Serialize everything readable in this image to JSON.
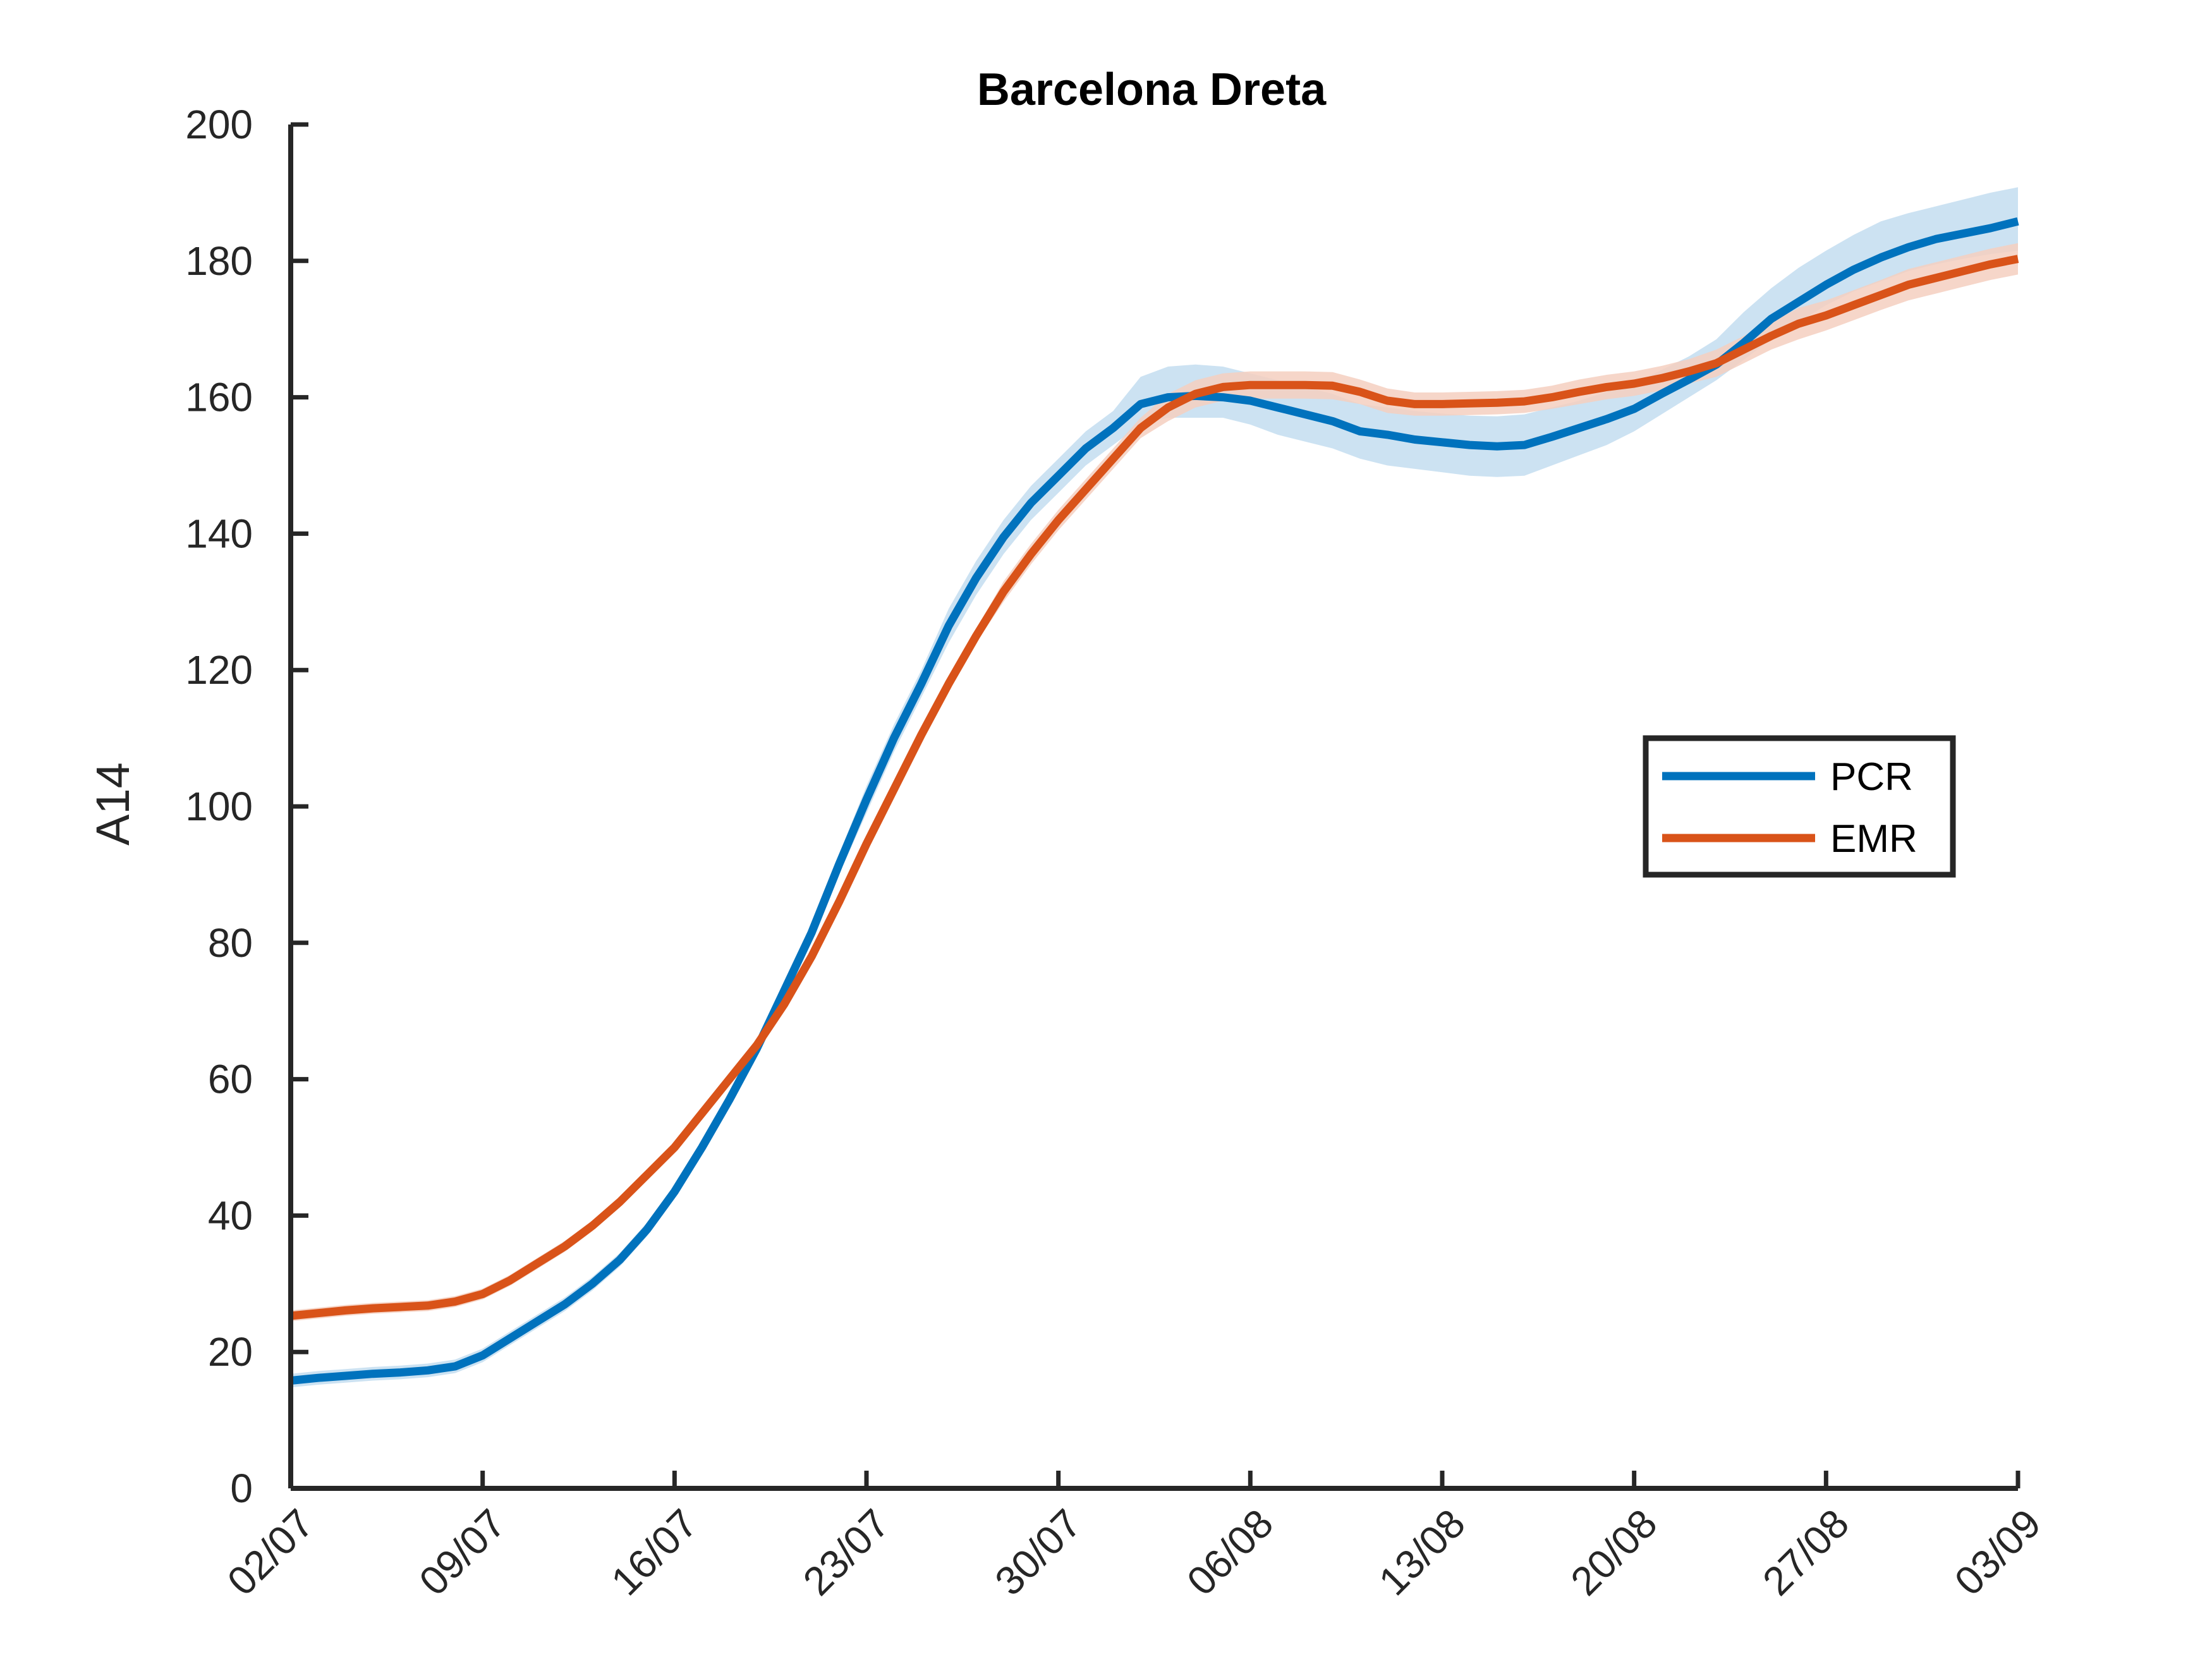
{
  "chart_data": {
    "type": "line",
    "title": "Barcelona Dreta",
    "xlabel": "",
    "ylabel": "A14",
    "ylim": [
      0,
      200
    ],
    "yticks": [
      "0",
      "20",
      "40",
      "60",
      "80",
      "100",
      "120",
      "140",
      "160",
      "180",
      "200"
    ],
    "xticks": [
      "02/07",
      "09/07",
      "16/07",
      "23/07",
      "30/07",
      "06/08",
      "13/08",
      "20/08",
      "27/08",
      "03/09"
    ],
    "x_start": "2020-07-02",
    "x_end": "2020-09-03",
    "grid": false,
    "legend_position": "right",
    "series": [
      {
        "name": "PCR",
        "color": "#0072BD",
        "band_color": "#C3DDF0",
        "x": [
          "2020-07-02",
          "2020-07-03",
          "2020-07-04",
          "2020-07-05",
          "2020-07-06",
          "2020-07-07",
          "2020-07-08",
          "2020-07-09",
          "2020-07-10",
          "2020-07-11",
          "2020-07-12",
          "2020-07-13",
          "2020-07-14",
          "2020-07-15",
          "2020-07-16",
          "2020-07-17",
          "2020-07-18",
          "2020-07-19",
          "2020-07-20",
          "2020-07-21",
          "2020-07-22",
          "2020-07-23",
          "2020-07-24",
          "2020-07-25",
          "2020-07-26",
          "2020-07-27",
          "2020-07-28",
          "2020-07-29",
          "2020-07-30",
          "2020-07-31",
          "2020-08-01",
          "2020-08-02",
          "2020-08-03",
          "2020-08-04",
          "2020-08-05",
          "2020-08-06",
          "2020-08-07",
          "2020-08-08",
          "2020-08-09",
          "2020-08-10",
          "2020-08-11",
          "2020-08-12",
          "2020-08-13",
          "2020-08-14",
          "2020-08-15",
          "2020-08-16",
          "2020-08-17",
          "2020-08-18",
          "2020-08-19",
          "2020-08-20",
          "2020-08-21",
          "2020-08-22",
          "2020-08-23",
          "2020-08-24",
          "2020-08-25",
          "2020-08-26",
          "2020-08-27",
          "2020-08-28",
          "2020-08-29",
          "2020-08-30",
          "2020-08-31",
          "2020-09-01",
          "2020-09-02",
          "2020-09-03"
        ],
        "values": [
          15.8,
          16.2,
          16.5,
          16.8,
          17.0,
          17.3,
          17.9,
          19.5,
          22.0,
          24.5,
          27.0,
          30.0,
          33.5,
          38.0,
          43.5,
          50.0,
          57.0,
          64.5,
          73.0,
          81.5,
          91.5,
          101.0,
          110.0,
          118.0,
          126.5,
          133.5,
          139.5,
          144.5,
          148.5,
          152.5,
          155.5,
          159.0,
          160.0,
          160.2,
          160.0,
          159.5,
          158.5,
          157.5,
          156.5,
          155.0,
          154.5,
          153.8,
          153.4,
          153.0,
          152.8,
          153.0,
          154.2,
          155.5,
          156.8,
          158.3,
          160.5,
          162.6,
          164.8,
          168.0,
          171.5,
          174.0,
          176.5,
          178.7,
          180.5,
          182.0,
          183.2,
          184.0,
          184.8,
          185.8
        ],
        "lower": [
          14.8,
          15.2,
          15.5,
          15.8,
          16.0,
          16.3,
          16.9,
          18.5,
          21.0,
          23.5,
          26.0,
          29.0,
          32.5,
          37.0,
          42.5,
          49.0,
          56.0,
          63.5,
          72.0,
          80.5,
          90.0,
          99.0,
          108.0,
          116.0,
          124.0,
          131.0,
          137.0,
          142.0,
          146.0,
          150.0,
          153.0,
          156.0,
          157.0,
          157.0,
          157.0,
          156.0,
          154.5,
          153.5,
          152.5,
          151.0,
          150.0,
          149.5,
          149.0,
          148.5,
          148.3,
          148.5,
          150.0,
          151.5,
          153.0,
          155.0,
          157.5,
          160.0,
          162.5,
          165.5,
          168.5,
          171.0,
          173.5,
          175.5,
          177.0,
          178.5,
          179.5,
          180.3,
          181.0,
          181.5
        ],
        "upper": [
          16.8,
          17.2,
          17.5,
          17.8,
          18.0,
          18.3,
          18.9,
          20.5,
          23.0,
          25.5,
          28.0,
          31.0,
          34.5,
          39.0,
          44.5,
          51.0,
          58.0,
          65.5,
          74.0,
          82.5,
          93.0,
          103.0,
          112.0,
          120.0,
          129.0,
          136.0,
          142.0,
          147.0,
          151.0,
          155.0,
          158.0,
          163.0,
          164.5,
          164.8,
          164.5,
          163.5,
          162.5,
          161.5,
          160.5,
          159.0,
          158.5,
          158.0,
          157.6,
          157.3,
          157.2,
          157.5,
          158.5,
          159.5,
          160.8,
          162.0,
          164.0,
          166.0,
          168.5,
          172.5,
          176.0,
          179.0,
          181.5,
          183.8,
          185.8,
          187.0,
          188.0,
          189.0,
          190.0,
          190.8
        ]
      },
      {
        "name": "EMR",
        "color": "#D95319",
        "band_color": "#F5CFC0",
        "x": [
          "2020-07-02",
          "2020-07-03",
          "2020-07-04",
          "2020-07-05",
          "2020-07-06",
          "2020-07-07",
          "2020-07-08",
          "2020-07-09",
          "2020-07-10",
          "2020-07-11",
          "2020-07-12",
          "2020-07-13",
          "2020-07-14",
          "2020-07-15",
          "2020-07-16",
          "2020-07-17",
          "2020-07-18",
          "2020-07-19",
          "2020-07-20",
          "2020-07-21",
          "2020-07-22",
          "2020-07-23",
          "2020-07-24",
          "2020-07-25",
          "2020-07-26",
          "2020-07-27",
          "2020-07-28",
          "2020-07-29",
          "2020-07-30",
          "2020-07-31",
          "2020-08-01",
          "2020-08-02",
          "2020-08-03",
          "2020-08-04",
          "2020-08-05",
          "2020-08-06",
          "2020-08-07",
          "2020-08-08",
          "2020-08-09",
          "2020-08-10",
          "2020-08-11",
          "2020-08-12",
          "2020-08-13",
          "2020-08-14",
          "2020-08-15",
          "2020-08-16",
          "2020-08-17",
          "2020-08-18",
          "2020-08-19",
          "2020-08-20",
          "2020-08-21",
          "2020-08-22",
          "2020-08-23",
          "2020-08-24",
          "2020-08-25",
          "2020-08-26",
          "2020-08-27",
          "2020-08-28",
          "2020-08-29",
          "2020-08-30",
          "2020-08-31",
          "2020-09-01",
          "2020-09-02",
          "2020-09-03"
        ],
        "values": [
          25.3,
          25.7,
          26.1,
          26.4,
          26.6,
          26.8,
          27.4,
          28.5,
          30.5,
          33.0,
          35.5,
          38.5,
          42.0,
          46.0,
          50.0,
          55.0,
          60.0,
          65.0,
          71.0,
          78.0,
          86.0,
          94.5,
          102.5,
          110.5,
          118.0,
          125.0,
          131.5,
          137.0,
          142.0,
          146.5,
          151.0,
          155.5,
          158.5,
          160.5,
          161.5,
          161.8,
          161.8,
          161.8,
          161.7,
          160.8,
          159.5,
          159.0,
          159.0,
          159.1,
          159.2,
          159.4,
          160.0,
          160.8,
          161.5,
          162.0,
          162.8,
          163.8,
          165.0,
          167.0,
          169.0,
          170.8,
          172.0,
          173.5,
          175.0,
          176.5,
          177.5,
          178.5,
          179.5,
          180.3
        ],
        "lower": [
          24.5,
          24.9,
          25.3,
          25.6,
          25.8,
          26.0,
          26.6,
          27.7,
          29.7,
          32.2,
          34.7,
          37.7,
          41.2,
          45.2,
          49.2,
          54.2,
          59.2,
          64.2,
          70.2,
          77.2,
          85.0,
          93.5,
          101.5,
          109.5,
          117.0,
          124.0,
          130.0,
          135.5,
          140.5,
          145.0,
          149.5,
          154.0,
          156.5,
          158.5,
          159.5,
          159.8,
          159.8,
          159.8,
          159.7,
          159.0,
          157.7,
          157.3,
          157.3,
          157.4,
          157.5,
          157.7,
          158.3,
          159.0,
          159.7,
          160.2,
          161.0,
          162.0,
          163.0,
          165.0,
          167.0,
          168.5,
          169.8,
          171.3,
          172.8,
          174.2,
          175.2,
          176.2,
          177.2,
          178.0
        ],
        "upper": [
          26.1,
          26.5,
          26.9,
          27.2,
          27.4,
          27.6,
          28.2,
          29.3,
          31.3,
          33.8,
          36.3,
          39.3,
          42.8,
          46.8,
          50.8,
          55.8,
          60.8,
          65.8,
          71.8,
          78.8,
          87.0,
          95.5,
          103.5,
          111.5,
          119.0,
          126.0,
          133.0,
          138.5,
          143.5,
          148.0,
          152.5,
          157.0,
          160.5,
          162.5,
          163.5,
          163.8,
          163.8,
          163.8,
          163.7,
          162.6,
          161.3,
          160.7,
          160.7,
          160.8,
          160.9,
          161.1,
          161.7,
          162.6,
          163.3,
          163.8,
          164.6,
          165.6,
          167.0,
          169.0,
          171.0,
          173.1,
          174.2,
          175.7,
          177.2,
          178.8,
          179.8,
          180.8,
          181.8,
          182.6
        ]
      }
    ]
  }
}
